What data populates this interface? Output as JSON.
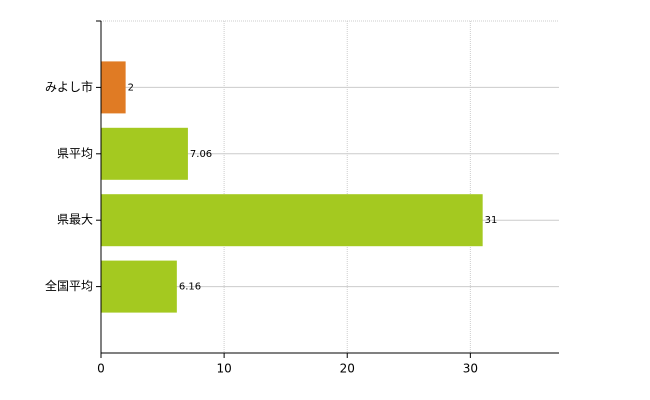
{
  "chart_data": {
    "type": "bar",
    "orientation": "horizontal",
    "categories": [
      "みよし市",
      "県平均",
      "県最大",
      "全国平均"
    ],
    "values": [
      2,
      7.06,
      31,
      6.16
    ],
    "colors": [
      "#e07b24",
      "#a4c920",
      "#a4c920",
      "#a4c920"
    ],
    "xlim": [
      0,
      37.2
    ],
    "xticks": [
      0,
      10,
      20,
      30
    ],
    "grid": true
  }
}
